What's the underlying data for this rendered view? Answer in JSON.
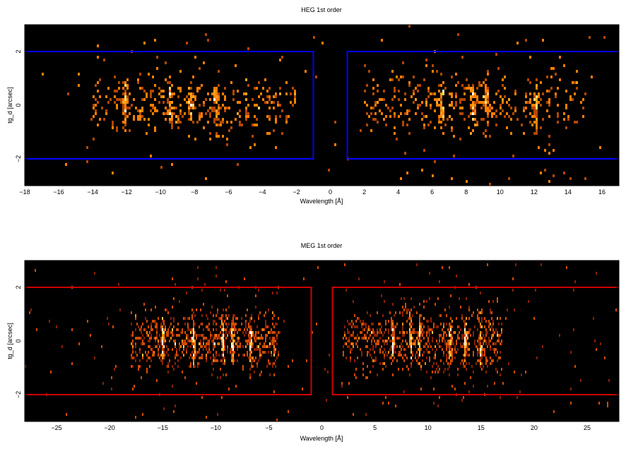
{
  "chart_data": [
    {
      "type": "heatmap",
      "title": "HEG 1st order",
      "xlabel": "Wavelength [Å]",
      "ylabel": "tg_d [arcsec]",
      "xlim": [
        -18,
        17
      ],
      "ylim": [
        -3,
        3
      ],
      "xticks": [
        -18,
        -16,
        -14,
        -12,
        -10,
        -8,
        -6,
        -4,
        -2,
        0,
        2,
        4,
        6,
        8,
        10,
        12,
        14,
        16
      ],
      "yticks": [
        -2,
        0,
        2
      ],
      "grid": false,
      "background_color": "#000000",
      "count_colors": [
        "#b34700",
        "#ff7f00",
        "#ffa21a",
        "#ffd86b",
        "#fffbe0"
      ],
      "regions": {
        "color": "#0000ff",
        "boxes": [
          {
            "x": [
              -18,
              -1
            ],
            "y": [
              -2,
              2
            ]
          },
          {
            "x": [
              1,
              17
            ],
            "y": [
              -2,
              2
            ]
          }
        ]
      },
      "emission_lines": [
        -12.1,
        -9.5,
        -8.4,
        -6.7,
        6.7,
        8.4,
        9.2,
        12.1
      ],
      "event_distribution": {
        "bands": [
          {
            "x_range": [
              -14,
              -2
            ],
            "centers": [
              -12.1,
              -9.4,
              -8.2,
              -6.7
            ],
            "density": "medium"
          },
          {
            "x_range": [
              2,
              15
            ],
            "centers": [
              6.6,
              8.4,
              9.2,
              12.1
            ],
            "density": "medium"
          }
        ],
        "y_spread": "mostly within ±1 arcsec, sparse out to ±3"
      }
    },
    {
      "type": "heatmap",
      "title": "MEG 1st order",
      "xlabel": "Wavelength [Å]",
      "ylabel": "tg_d [arcsec]",
      "xlim": [
        -28,
        28
      ],
      "ylim": [
        -3,
        3
      ],
      "xticks": [
        -25,
        -20,
        -15,
        -10,
        -5,
        0,
        5,
        10,
        15,
        20,
        25
      ],
      "yticks": [
        -2,
        0,
        2
      ],
      "grid": false,
      "background_color": "#000000",
      "count_colors": [
        "#8a2000",
        "#d24b00",
        "#ff8c10",
        "#ffc94a",
        "#fffbe0"
      ],
      "regions": {
        "color": "#cc0000",
        "boxes": [
          {
            "x": [
              -28,
              -1
            ],
            "y": [
              -2,
              2
            ]
          },
          {
            "x": [
              1,
              28
            ],
            "y": [
              -2,
              2
            ]
          }
        ]
      },
      "emission_lines": [
        -15,
        -13.5,
        -12.1,
        -9.3,
        -8.4,
        -6.7,
        6.7,
        8.4,
        9.2,
        12.1,
        13.5,
        15
      ],
      "event_distribution": {
        "bands": [
          {
            "x_range": [
              -18,
              -4
            ],
            "centers": [
              -15,
              -12.1,
              -9.3,
              -8.4,
              -6.7
            ],
            "density": "high"
          },
          {
            "x_range": [
              2,
              17
            ],
            "centers": [
              6.7,
              8.4,
              9.2,
              12.1,
              13.5,
              15
            ],
            "density": "high"
          }
        ],
        "y_spread": "mostly within ±1 arcsec, sparse out to ±3"
      }
    }
  ]
}
